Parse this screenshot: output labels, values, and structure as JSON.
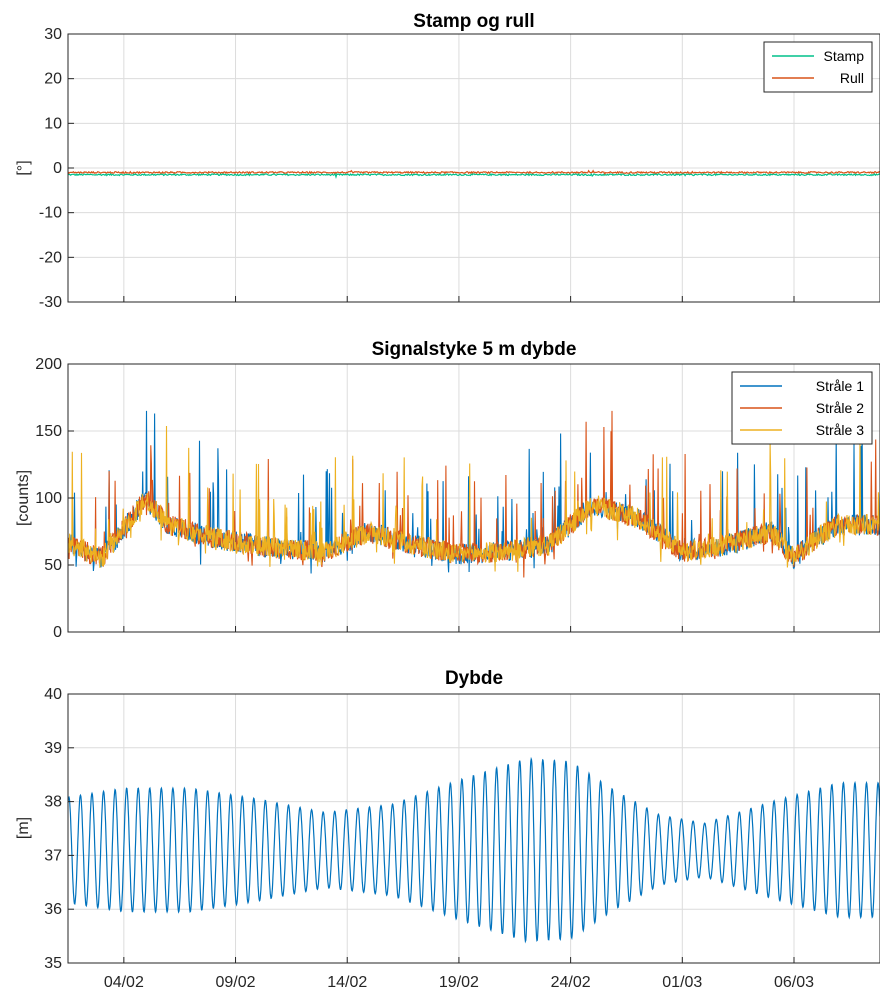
{
  "chart_data": [
    {
      "type": "line",
      "title": "Stamp og rull",
      "ylabel": "[°]",
      "xlabel": "",
      "ylim": [
        -30,
        30
      ],
      "yticks": [
        "-30",
        "-20",
        "-10",
        "0",
        "10",
        "20",
        "30"
      ],
      "xticks": [
        "04/02",
        "09/02",
        "14/02",
        "19/02",
        "24/02",
        "01/03",
        "06/03"
      ],
      "grid": true,
      "legend": "top-right",
      "series": [
        {
          "name": "Stamp",
          "color": "#00C08A",
          "mean": -1.5,
          "values": [
            -1.5,
            -1.6,
            -1.4,
            -1.5,
            -1.7,
            -1.5,
            -2.0,
            -1.6,
            -1.5,
            -1.4,
            -1.6,
            -1.5,
            -1.8,
            -1.6,
            -1.5,
            -1.7,
            -1.5,
            -1.4,
            -1.6,
            -1.5,
            -1.5
          ]
        },
        {
          "name": "Rull",
          "color": "#D95319",
          "mean": -1.0,
          "values": [
            -1.0,
            -0.9,
            -1.1,
            -1.0,
            -0.9,
            -1.0,
            -0.6,
            -1.2,
            -1.0,
            -1.0,
            -0.9,
            -1.0,
            -0.6,
            -1.3,
            -1.0,
            -0.8,
            -1.0,
            -1.1,
            -0.9,
            -1.0,
            -1.0
          ]
        }
      ]
    },
    {
      "type": "line",
      "title": "Signalstyke  5 m dybde",
      "ylabel": "[counts]",
      "xlabel": "",
      "ylim": [
        0,
        200
      ],
      "yticks": [
        "0",
        "50",
        "100",
        "150",
        "200"
      ],
      "xticks": [
        "04/02",
        "09/02",
        "14/02",
        "19/02",
        "24/02",
        "01/03",
        "06/03"
      ],
      "grid": true,
      "legend": "top-right",
      "series": [
        {
          "name": "Stråle 1",
          "color": "#0072BD"
        },
        {
          "name": "Stråle 2",
          "color": "#D95319"
        },
        {
          "name": "Stråle 3",
          "color": "#EDB120"
        }
      ],
      "baseline": [
        [
          1,
          70
        ],
        [
          3,
          55
        ],
        [
          5,
          100
        ],
        [
          6,
          80
        ],
        [
          8,
          70
        ],
        [
          11,
          62
        ],
        [
          13,
          60
        ],
        [
          15,
          75
        ],
        [
          17,
          65
        ],
        [
          19,
          58
        ],
        [
          21,
          60
        ],
        [
          23,
          65
        ],
        [
          25,
          95
        ],
        [
          27,
          85
        ],
        [
          29,
          60
        ],
        [
          31,
          65
        ],
        [
          33,
          75
        ],
        [
          34,
          55
        ],
        [
          35,
          70
        ],
        [
          36,
          80
        ]
      ],
      "spike_range": [
        0,
        165
      ]
    },
    {
      "type": "line",
      "title": "Dybde",
      "ylabel": "[m]",
      "xlabel": "",
      "ylim": [
        35,
        40
      ],
      "yticks": [
        "35",
        "36",
        "37",
        "38",
        "39",
        "40"
      ],
      "xticks": [
        "04/02",
        "09/02",
        "14/02",
        "19/02",
        "24/02",
        "01/03",
        "06/03"
      ],
      "grid": true,
      "series": [
        {
          "name": "",
          "color": "#0072BD",
          "mean": 37.1,
          "period_days": 0.5175,
          "amplitude_envelope": [
            [
              1,
              0.95
            ],
            [
              4,
              1.15
            ],
            [
              7,
              1.15
            ],
            [
              10,
              0.95
            ],
            [
              13,
              0.7
            ],
            [
              16,
              0.85
            ],
            [
              19,
              1.3
            ],
            [
              22,
              1.7
            ],
            [
              24,
              1.65
            ],
            [
              26,
              1.1
            ],
            [
              28,
              0.65
            ],
            [
              30,
              0.5
            ],
            [
              33,
              0.9
            ],
            [
              36,
              1.25
            ]
          ]
        }
      ]
    }
  ]
}
